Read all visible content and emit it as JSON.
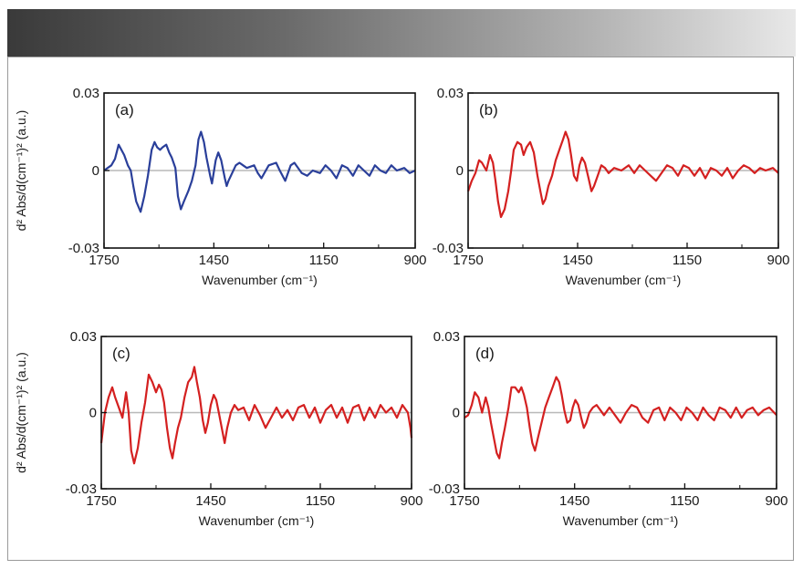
{
  "chart_data": [
    {
      "type": "line",
      "panel_label": "(a)",
      "color": "#2a3f9a",
      "xlabel": "Wavenumber (cm⁻¹)",
      "ylabel": "d² Abs/d(cm⁻¹)² (a.u.)",
      "xlim": [
        1750,
        900
      ],
      "ylim": [
        -0.03,
        0.03
      ],
      "xticks": [
        "1750",
        "1450",
        "1150",
        "900"
      ],
      "yticks": [
        "0.03",
        "0",
        "-0.03"
      ],
      "x": [
        1750,
        1730,
        1720,
        1710,
        1695,
        1685,
        1677,
        1670,
        1662,
        1650,
        1640,
        1630,
        1620,
        1612,
        1605,
        1597,
        1590,
        1580,
        1572,
        1565,
        1555,
        1548,
        1540,
        1532,
        1520,
        1510,
        1500,
        1492,
        1485,
        1477,
        1470,
        1460,
        1455,
        1445,
        1438,
        1430,
        1420,
        1415,
        1410,
        1400,
        1390,
        1380,
        1370,
        1360,
        1340,
        1330,
        1320,
        1300,
        1280,
        1270,
        1255,
        1240,
        1230,
        1210,
        1195,
        1180,
        1160,
        1145,
        1130,
        1115,
        1100,
        1085,
        1070,
        1055,
        1040,
        1025,
        1010,
        995,
        980,
        965,
        950,
        930,
        915,
        900
      ],
      "y": [
        0.0,
        0.002,
        0.0045,
        0.01,
        0.006,
        0.002,
        0.0,
        -0.006,
        -0.012,
        -0.016,
        -0.01,
        -0.002,
        0.008,
        0.011,
        0.009,
        0.008,
        0.009,
        0.01,
        0.007,
        0.005,
        0.001,
        -0.01,
        -0.015,
        -0.012,
        -0.008,
        -0.004,
        0.002,
        0.012,
        0.015,
        0.011,
        0.005,
        -0.002,
        -0.005,
        0.004,
        0.007,
        0.004,
        -0.003,
        -0.006,
        -0.004,
        -0.001,
        0.002,
        0.003,
        0.002,
        0.001,
        0.002,
        -0.001,
        -0.003,
        0.002,
        0.003,
        0.0,
        -0.004,
        0.002,
        0.003,
        -0.001,
        -0.002,
        0.0,
        -0.001,
        0.002,
        0.0,
        -0.003,
        0.002,
        0.001,
        -0.002,
        0.002,
        0.0,
        -0.002,
        0.002,
        0.0,
        -0.001,
        0.002,
        0.0,
        0.001,
        -0.001,
        0.0
      ]
    },
    {
      "type": "line",
      "panel_label": "(b)",
      "color": "#d42020",
      "xlabel": "Wavenumber (cm⁻¹)",
      "ylabel": "",
      "xlim": [
        1750,
        900
      ],
      "ylim": [
        -0.03,
        0.03
      ],
      "xticks": [
        "1750",
        "1450",
        "1150",
        "900"
      ],
      "yticks": [
        "0.03",
        "0",
        "-0.03"
      ],
      "x": [
        1750,
        1740,
        1730,
        1720,
        1712,
        1700,
        1690,
        1682,
        1675,
        1668,
        1660,
        1650,
        1640,
        1632,
        1625,
        1615,
        1605,
        1598,
        1590,
        1580,
        1570,
        1560,
        1552,
        1545,
        1538,
        1530,
        1520,
        1510,
        1500,
        1490,
        1483,
        1475,
        1468,
        1460,
        1452,
        1445,
        1438,
        1430,
        1420,
        1412,
        1405,
        1395,
        1385,
        1375,
        1365,
        1350,
        1330,
        1310,
        1295,
        1280,
        1265,
        1250,
        1235,
        1220,
        1205,
        1190,
        1175,
        1160,
        1145,
        1130,
        1115,
        1100,
        1085,
        1070,
        1055,
        1040,
        1025,
        1010,
        995,
        980,
        965,
        950,
        935,
        915,
        900
      ],
      "y": [
        -0.008,
        -0.004,
        -0.001,
        0.004,
        0.003,
        0.0,
        0.006,
        0.003,
        -0.004,
        -0.012,
        -0.018,
        -0.015,
        -0.008,
        0.0,
        0.008,
        0.011,
        0.01,
        0.006,
        0.009,
        0.011,
        0.007,
        -0.002,
        -0.008,
        -0.013,
        -0.011,
        -0.006,
        -0.002,
        0.004,
        0.008,
        0.012,
        0.015,
        0.012,
        0.006,
        -0.002,
        -0.004,
        0.002,
        0.005,
        0.003,
        -0.003,
        -0.008,
        -0.006,
        -0.002,
        0.002,
        0.001,
        -0.001,
        0.001,
        0.0,
        0.002,
        -0.001,
        0.002,
        0.0,
        -0.002,
        -0.004,
        -0.001,
        0.002,
        0.001,
        -0.002,
        0.002,
        0.001,
        -0.002,
        0.001,
        -0.003,
        0.001,
        0.0,
        -0.002,
        0.001,
        -0.003,
        0.0,
        0.002,
        0.001,
        -0.001,
        0.001,
        0.0,
        0.001,
        -0.001
      ]
    },
    {
      "type": "line",
      "panel_label": "(c)",
      "color": "#d42020",
      "xlabel": "Wavenumber (cm⁻¹)",
      "ylabel": "d² Abs/d(cm⁻¹)² (a.u.)",
      "xlim": [
        1750,
        900
      ],
      "ylim": [
        -0.03,
        0.03
      ],
      "xticks": [
        "1750",
        "1450",
        "1150",
        "900"
      ],
      "yticks": [
        "0.03",
        "0",
        "-0.03"
      ],
      "x": [
        1750,
        1740,
        1730,
        1720,
        1712,
        1702,
        1692,
        1682,
        1675,
        1668,
        1660,
        1650,
        1640,
        1630,
        1620,
        1610,
        1600,
        1592,
        1585,
        1578,
        1570,
        1562,
        1555,
        1548,
        1540,
        1532,
        1522,
        1512,
        1502,
        1495,
        1488,
        1480,
        1472,
        1465,
        1458,
        1450,
        1442,
        1435,
        1428,
        1420,
        1412,
        1405,
        1395,
        1385,
        1375,
        1360,
        1345,
        1330,
        1315,
        1300,
        1285,
        1270,
        1255,
        1240,
        1225,
        1210,
        1195,
        1180,
        1165,
        1150,
        1135,
        1120,
        1105,
        1090,
        1075,
        1060,
        1045,
        1030,
        1015,
        1000,
        985,
        970,
        955,
        940,
        925,
        910,
        903,
        900
      ],
      "y": [
        -0.012,
        0.0,
        0.006,
        0.01,
        0.006,
        0.002,
        -0.002,
        0.008,
        0.0,
        -0.015,
        -0.02,
        -0.014,
        -0.004,
        0.004,
        0.015,
        0.012,
        0.008,
        0.011,
        0.009,
        0.004,
        -0.006,
        -0.014,
        -0.018,
        -0.012,
        -0.006,
        -0.002,
        0.006,
        0.012,
        0.014,
        0.018,
        0.012,
        0.006,
        -0.003,
        -0.008,
        -0.004,
        0.003,
        0.007,
        0.005,
        0.0,
        -0.006,
        -0.012,
        -0.006,
        0.0,
        0.003,
        0.001,
        0.002,
        -0.003,
        0.003,
        -0.001,
        -0.006,
        -0.002,
        0.002,
        -0.002,
        0.001,
        -0.003,
        0.002,
        0.003,
        -0.002,
        0.002,
        -0.004,
        0.001,
        0.003,
        -0.002,
        0.002,
        -0.004,
        0.002,
        0.003,
        -0.003,
        0.002,
        -0.002,
        0.003,
        0.0,
        0.002,
        -0.002,
        0.003,
        0.0,
        -0.006,
        -0.01
      ]
    },
    {
      "type": "line",
      "panel_label": "(d)",
      "color": "#d42020",
      "xlabel": "Wavenumber (cm⁻¹)",
      "ylabel": "",
      "xlim": [
        1750,
        900
      ],
      "ylim": [
        -0.03,
        0.03
      ],
      "xticks": [
        "1750",
        "1450",
        "1150",
        "900"
      ],
      "yticks": [
        "0.03",
        "0",
        "-0.03"
      ],
      "x": [
        1750,
        1740,
        1730,
        1722,
        1712,
        1702,
        1692,
        1685,
        1678,
        1670,
        1662,
        1655,
        1648,
        1640,
        1630,
        1622,
        1612,
        1602,
        1595,
        1588,
        1580,
        1572,
        1565,
        1558,
        1550,
        1540,
        1530,
        1520,
        1510,
        1500,
        1492,
        1485,
        1478,
        1470,
        1462,
        1455,
        1448,
        1440,
        1432,
        1425,
        1418,
        1410,
        1400,
        1390,
        1380,
        1370,
        1355,
        1340,
        1325,
        1310,
        1295,
        1280,
        1265,
        1250,
        1235,
        1220,
        1205,
        1190,
        1175,
        1160,
        1145,
        1130,
        1115,
        1100,
        1085,
        1070,
        1055,
        1040,
        1025,
        1010,
        995,
        980,
        965,
        950,
        935,
        920,
        900
      ],
      "y": [
        -0.002,
        -0.001,
        0.003,
        0.008,
        0.006,
        0.0,
        0.006,
        0.002,
        -0.004,
        -0.01,
        -0.016,
        -0.018,
        -0.012,
        -0.006,
        0.002,
        0.01,
        0.01,
        0.008,
        0.01,
        0.007,
        0.002,
        -0.006,
        -0.012,
        -0.015,
        -0.01,
        -0.004,
        0.002,
        0.006,
        0.01,
        0.014,
        0.012,
        0.007,
        0.001,
        -0.004,
        -0.003,
        0.002,
        0.005,
        0.003,
        -0.002,
        -0.006,
        -0.004,
        0.0,
        0.002,
        0.003,
        0.001,
        -0.001,
        0.002,
        -0.001,
        -0.004,
        0.0,
        0.003,
        0.002,
        -0.002,
        -0.004,
        0.001,
        0.002,
        -0.003,
        0.002,
        0.0,
        -0.003,
        0.002,
        0.0,
        -0.003,
        0.002,
        -0.001,
        -0.003,
        0.002,
        0.001,
        -0.002,
        0.002,
        -0.002,
        0.001,
        0.002,
        -0.001,
        0.001,
        0.002,
        -0.001
      ]
    }
  ]
}
